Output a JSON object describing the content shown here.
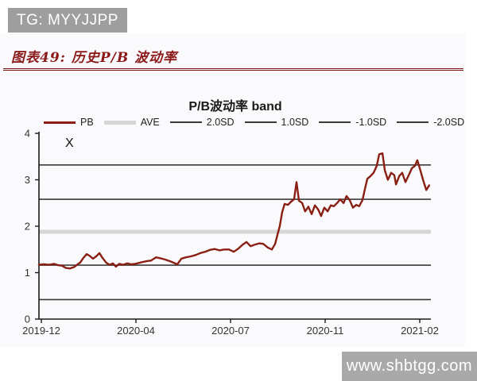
{
  "header": {
    "badge_text": "TG: MYYJJPP",
    "badge_bg": "#9e9e9e",
    "badge_text_color": "#ffffff"
  },
  "panel_bg": "#faf9fc",
  "figure_caption": {
    "text": "图表49: 历史P/B 波动率",
    "color": "#8b1a1a"
  },
  "annotation_x": "X",
  "watermark": {
    "text": "www.shbtgg.com",
    "bg": "#a9a9a9",
    "text_color": "#ffffff"
  },
  "chart_data": {
    "type": "line",
    "title": "P/B波动率 band",
    "title_color": "#1a1a1a",
    "xlabel": "",
    "ylabel": "",
    "ylim": [
      0,
      4
    ],
    "y_ticks": [
      "0",
      "1",
      "2",
      "3",
      "4"
    ],
    "x_ticks": [
      "2019-12",
      "2020-04",
      "2020-07",
      "2020-11",
      "2021-02"
    ],
    "x_span_months": 14,
    "grid": false,
    "legend_position": "top",
    "axis_color": "#1a1a1a",
    "tick_label_color": "#333333",
    "legend": [
      {
        "label": "PB",
        "color": "#8a1f14",
        "thickness": 3
      },
      {
        "label": "AVE",
        "color": "#d6d6d6",
        "thickness": 5
      },
      {
        "label": "2.0SD",
        "color": "#3a3a3a",
        "thickness": 2
      },
      {
        "label": "1.0SD",
        "color": "#3a3a3a",
        "thickness": 2
      },
      {
        "label": "-1.0SD",
        "color": "#3a3a3a",
        "thickness": 2
      },
      {
        "label": "-2.0SD",
        "color": "#3a3a3a",
        "thickness": 2
      }
    ],
    "reference_lines": [
      {
        "name": "2.0SD",
        "value": 3.32,
        "color": "#3a3a3a",
        "width": 1.6
      },
      {
        "name": "1.0SD",
        "value": 2.58,
        "color": "#3a3a3a",
        "width": 1.6
      },
      {
        "name": "AVE",
        "value": 1.88,
        "color": "#d6d6d6",
        "width": 5
      },
      {
        "name": "-1.0SD",
        "value": 1.16,
        "color": "#3a3a3a",
        "width": 1.6
      },
      {
        "name": "-2.0SD",
        "value": 0.42,
        "color": "#3a3a3a",
        "width": 1.6
      }
    ],
    "series": [
      {
        "name": "PB",
        "color": "#8a1f14",
        "width": 2.4,
        "points": [
          [
            -0.09,
            1.17
          ],
          [
            0.09,
            1.18
          ],
          [
            0.29,
            1.17
          ],
          [
            0.47,
            1.19
          ],
          [
            0.62,
            1.16
          ],
          [
            0.76,
            1.15
          ],
          [
            0.91,
            1.1
          ],
          [
            1.06,
            1.09
          ],
          [
            1.21,
            1.12
          ],
          [
            1.32,
            1.17
          ],
          [
            1.44,
            1.22
          ],
          [
            1.56,
            1.32
          ],
          [
            1.68,
            1.4
          ],
          [
            1.79,
            1.36
          ],
          [
            1.91,
            1.3
          ],
          [
            2.03,
            1.35
          ],
          [
            2.15,
            1.42
          ],
          [
            2.26,
            1.32
          ],
          [
            2.41,
            1.21
          ],
          [
            2.53,
            1.17
          ],
          [
            2.65,
            1.2
          ],
          [
            2.76,
            1.13
          ],
          [
            2.88,
            1.19
          ],
          [
            3.03,
            1.17
          ],
          [
            3.18,
            1.2
          ],
          [
            3.32,
            1.18
          ],
          [
            3.47,
            1.19
          ],
          [
            3.62,
            1.21
          ],
          [
            3.76,
            1.23
          ],
          [
            3.91,
            1.25
          ],
          [
            4.06,
            1.26
          ],
          [
            4.24,
            1.33
          ],
          [
            4.41,
            1.31
          ],
          [
            4.59,
            1.28
          ],
          [
            4.79,
            1.24
          ],
          [
            5.03,
            1.18
          ],
          [
            5.18,
            1.3
          ],
          [
            5.35,
            1.33
          ],
          [
            5.53,
            1.35
          ],
          [
            5.71,
            1.38
          ],
          [
            5.88,
            1.42
          ],
          [
            6.06,
            1.45
          ],
          [
            6.24,
            1.49
          ],
          [
            6.41,
            1.51
          ],
          [
            6.59,
            1.48
          ],
          [
            6.76,
            1.5
          ],
          [
            6.94,
            1.5
          ],
          [
            7.12,
            1.45
          ],
          [
            7.29,
            1.52
          ],
          [
            7.44,
            1.6
          ],
          [
            7.59,
            1.66
          ],
          [
            7.74,
            1.57
          ],
          [
            7.88,
            1.6
          ],
          [
            8.06,
            1.63
          ],
          [
            8.21,
            1.62
          ],
          [
            8.38,
            1.54
          ],
          [
            8.53,
            1.5
          ],
          [
            8.65,
            1.62
          ],
          [
            8.74,
            1.83
          ],
          [
            8.82,
            2.0
          ],
          [
            8.91,
            2.3
          ],
          [
            9.0,
            2.48
          ],
          [
            9.12,
            2.46
          ],
          [
            9.24,
            2.53
          ],
          [
            9.35,
            2.58
          ],
          [
            9.44,
            2.95
          ],
          [
            9.53,
            2.55
          ],
          [
            9.65,
            2.5
          ],
          [
            9.76,
            2.32
          ],
          [
            9.88,
            2.42
          ],
          [
            10.0,
            2.26
          ],
          [
            10.12,
            2.45
          ],
          [
            10.24,
            2.36
          ],
          [
            10.35,
            2.22
          ],
          [
            10.47,
            2.4
          ],
          [
            10.59,
            2.32
          ],
          [
            10.71,
            2.45
          ],
          [
            10.82,
            2.43
          ],
          [
            10.94,
            2.5
          ],
          [
            11.06,
            2.58
          ],
          [
            11.18,
            2.5
          ],
          [
            11.29,
            2.65
          ],
          [
            11.41,
            2.56
          ],
          [
            11.53,
            2.4
          ],
          [
            11.65,
            2.46
          ],
          [
            11.76,
            2.43
          ],
          [
            11.88,
            2.56
          ],
          [
            11.97,
            2.8
          ],
          [
            12.06,
            3.02
          ],
          [
            12.18,
            3.08
          ],
          [
            12.29,
            3.15
          ],
          [
            12.41,
            3.3
          ],
          [
            12.5,
            3.55
          ],
          [
            12.62,
            3.57
          ],
          [
            12.71,
            3.2
          ],
          [
            12.82,
            3.0
          ],
          [
            12.94,
            3.15
          ],
          [
            13.06,
            3.1
          ],
          [
            13.12,
            2.9
          ],
          [
            13.24,
            3.08
          ],
          [
            13.35,
            3.15
          ],
          [
            13.47,
            2.95
          ],
          [
            13.59,
            3.1
          ],
          [
            13.71,
            3.25
          ],
          [
            13.82,
            3.3
          ],
          [
            13.91,
            3.42
          ],
          [
            14.0,
            3.25
          ],
          [
            14.12,
            3.0
          ],
          [
            14.24,
            2.78
          ],
          [
            14.35,
            2.88
          ]
        ]
      }
    ]
  }
}
